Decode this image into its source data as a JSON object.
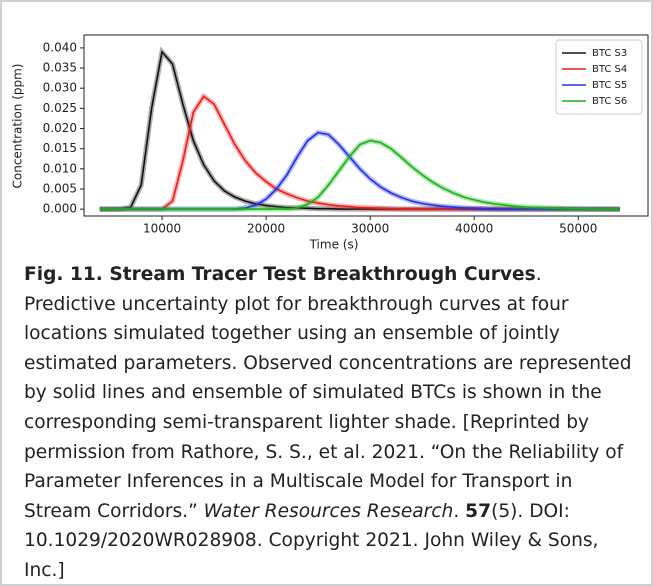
{
  "chart_data": {
    "type": "line",
    "xlabel": "Time (s)",
    "ylabel": "Concentration (ppm)",
    "x": [
      4000,
      5000,
      6000,
      7000,
      8000,
      9000,
      10000,
      11000,
      12000,
      13000,
      14000,
      15000,
      16000,
      17000,
      18000,
      19000,
      20000,
      21000,
      22000,
      23000,
      24000,
      25000,
      26000,
      27000,
      28000,
      29000,
      30000,
      31000,
      32000,
      33000,
      34000,
      35000,
      36000,
      37000,
      38000,
      39000,
      40000,
      41000,
      42000,
      43000,
      44000,
      45000,
      46000,
      47000,
      48000,
      49000,
      50000,
      51000,
      52000,
      53000,
      54000
    ],
    "series": [
      {
        "name": "BTC S3",
        "color": "#111111",
        "values": [
          0,
          0,
          0,
          0.0005,
          0.006,
          0.025,
          0.039,
          0.036,
          0.026,
          0.017,
          0.011,
          0.007,
          0.0045,
          0.003,
          0.002,
          0.0013,
          0.0009,
          0.0006,
          0.0004,
          0.0003,
          0.0002,
          0.0001,
          0.0001,
          0,
          0,
          0,
          0,
          0,
          0,
          0,
          0,
          0,
          0,
          0,
          0,
          0,
          0,
          0,
          0,
          0,
          0,
          0,
          0,
          0,
          0,
          0,
          0,
          0,
          0,
          0,
          0
        ]
      },
      {
        "name": "BTC S4",
        "color": "#e8201c",
        "values": [
          0,
          0,
          0,
          0,
          0,
          0,
          0,
          0.002,
          0.012,
          0.024,
          0.028,
          0.026,
          0.021,
          0.016,
          0.012,
          0.009,
          0.0068,
          0.005,
          0.0038,
          0.0028,
          0.002,
          0.0015,
          0.0011,
          0.0008,
          0.0006,
          0.0004,
          0.0003,
          0.0002,
          0.0001,
          0,
          0,
          0,
          0,
          0,
          0,
          0,
          0,
          0,
          0,
          0,
          0,
          0,
          0,
          0,
          0,
          0,
          0,
          0,
          0,
          0,
          0
        ]
      },
      {
        "name": "BTC S5",
        "color": "#2233e0",
        "values": [
          0,
          0,
          0,
          0,
          0,
          0,
          0,
          0,
          0,
          0,
          0,
          0,
          0,
          0,
          0.0003,
          0.001,
          0.0025,
          0.005,
          0.0085,
          0.013,
          0.017,
          0.019,
          0.0185,
          0.016,
          0.013,
          0.01,
          0.0075,
          0.0055,
          0.004,
          0.0029,
          0.002,
          0.0014,
          0.001,
          0.0007,
          0.0005,
          0.0003,
          0.0002,
          0.0001,
          0,
          0,
          0,
          0,
          0,
          0,
          0,
          0,
          0,
          0,
          0,
          0,
          0
        ]
      },
      {
        "name": "BTC S6",
        "color": "#18b418",
        "values": [
          0,
          0,
          0,
          0,
          0,
          0,
          0,
          0,
          0,
          0,
          0,
          0,
          0,
          0,
          0,
          0,
          0,
          0,
          0,
          0.0003,
          0.0012,
          0.003,
          0.006,
          0.0095,
          0.013,
          0.016,
          0.017,
          0.0165,
          0.015,
          0.0128,
          0.0105,
          0.0085,
          0.0067,
          0.0052,
          0.004,
          0.003,
          0.0023,
          0.0017,
          0.0013,
          0.001,
          0.0007,
          0.0005,
          0.0004,
          0.0003,
          0.0002,
          0.0001,
          0.0001,
          0,
          0,
          0,
          0
        ]
      }
    ],
    "xlim": [
      2500,
      56700
    ],
    "xticks": [
      10000,
      20000,
      30000,
      40000,
      50000
    ],
    "ylim": [
      -0.0017,
      0.0432
    ],
    "yticks": [
      {
        "value": 0,
        "label": "0.000"
      },
      {
        "value": 0.005,
        "label": "0.005"
      },
      {
        "value": 0.01,
        "label": "0.010"
      },
      {
        "value": 0.015,
        "label": "0.015"
      },
      {
        "value": 0.02,
        "label": "0.020"
      },
      {
        "value": 0.025,
        "label": "0.025"
      },
      {
        "value": 0.03,
        "label": "0.030"
      },
      {
        "value": 0.035,
        "label": "0.035"
      },
      {
        "value": 0.04,
        "label": "0.040"
      }
    ],
    "legend": "upper right",
    "grid": false
  },
  "caption": {
    "parts": [
      {
        "text": "Fig. 11. Stream Tracer Test Breakthrough Curves",
        "style": "bold"
      },
      {
        "text": ". Predictive uncertainty plot for breakthrough curves at four locations simulated together using an ensemble of jointly estimated parameters. Observed concentrations are represented by solid lines and ensemble of simulated BTCs is shown in the corresponding semi-transparent lighter shade. [Reprinted by permission from Rathore, S. S., et al. 2021. “On the Reliability of Parameter Inferences in a Multiscale Model for Transport in Stream Corridors.” ",
        "style": "normal"
      },
      {
        "text": "Water Resources Research",
        "style": "italic"
      },
      {
        "text": ". ",
        "style": "normal"
      },
      {
        "text": "57",
        "style": "bold"
      },
      {
        "text": "(5). DOI: 10.1029/2020WR028908. Copyright 2021. John Wiley & Sons, Inc.]",
        "style": "normal"
      }
    ]
  }
}
